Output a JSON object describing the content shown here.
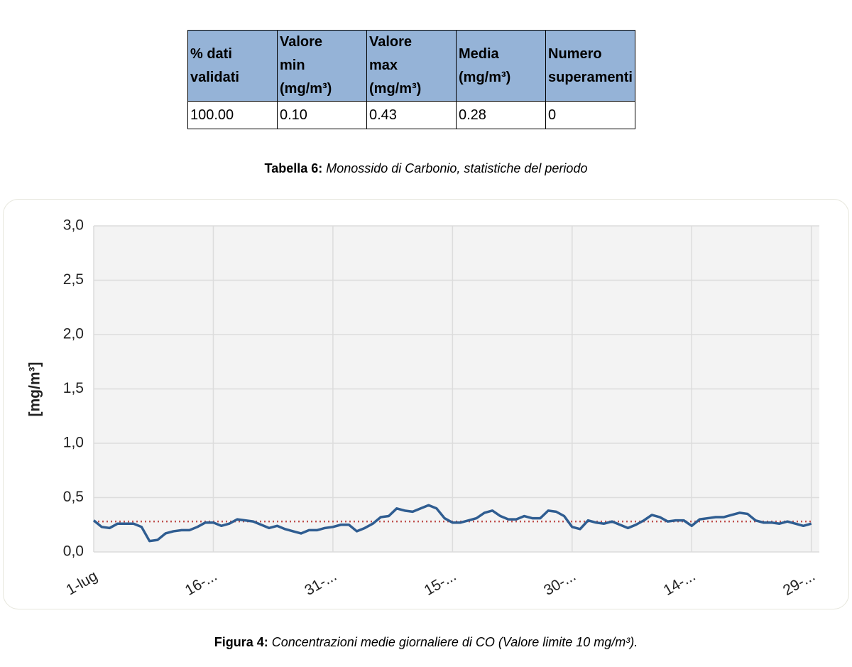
{
  "table": {
    "header": [
      [
        "% dati",
        "validati"
      ],
      [
        "Valore",
        "min",
        "(mg/m³)"
      ],
      [
        "Valore",
        "max",
        "(mg/m³)"
      ],
      [
        "Media",
        "(mg/m³)"
      ],
      [
        "Numero",
        "superamenti"
      ]
    ],
    "rows": [
      [
        "100.00",
        "0.10",
        "0.43",
        "0.28",
        "0"
      ]
    ]
  },
  "table_caption": {
    "label": "Tabella 6:",
    "text": "Monossido di Carbonio, statistiche del periodo"
  },
  "chart_data": {
    "type": "line",
    "y_label": "[mg/m³]",
    "categories": [
      "1-lug",
      null,
      null,
      null,
      null,
      null,
      null,
      null,
      null,
      null,
      null,
      null,
      null,
      null,
      null,
      "16-...",
      null,
      null,
      null,
      null,
      null,
      null,
      null,
      null,
      null,
      null,
      null,
      null,
      null,
      null,
      "31-...",
      null,
      null,
      null,
      null,
      null,
      null,
      null,
      null,
      null,
      null,
      null,
      null,
      null,
      null,
      "15-...",
      null,
      null,
      null,
      null,
      null,
      null,
      null,
      null,
      null,
      null,
      null,
      null,
      null,
      null,
      "30-...",
      null,
      null,
      null,
      null,
      null,
      null,
      null,
      null,
      null,
      null,
      null,
      null,
      null,
      null,
      "14-...",
      null,
      null,
      null,
      null,
      null,
      null,
      null,
      null,
      null,
      null,
      null,
      null,
      null,
      null,
      "29-..."
    ],
    "series": [
      {
        "name": "CO",
        "color": "#2f5d91",
        "values": [
          0.29,
          0.23,
          0.22,
          0.26,
          0.26,
          0.26,
          0.23,
          0.1,
          0.11,
          0.17,
          0.19,
          0.2,
          0.2,
          0.23,
          0.27,
          0.27,
          0.24,
          0.26,
          0.3,
          0.29,
          0.28,
          0.25,
          0.22,
          0.24,
          0.21,
          0.19,
          0.17,
          0.2,
          0.2,
          0.22,
          0.23,
          0.25,
          0.25,
          0.19,
          0.22,
          0.26,
          0.32,
          0.33,
          0.4,
          0.38,
          0.37,
          0.4,
          0.43,
          0.4,
          0.31,
          0.27,
          0.27,
          0.29,
          0.31,
          0.36,
          0.38,
          0.33,
          0.3,
          0.3,
          0.33,
          0.31,
          0.31,
          0.38,
          0.37,
          0.33,
          0.23,
          0.21,
          0.29,
          0.27,
          0.26,
          0.28,
          0.25,
          0.22,
          0.25,
          0.29,
          0.34,
          0.32,
          0.28,
          0.29,
          0.29,
          0.24,
          0.3,
          0.31,
          0.32,
          0.32,
          0.34,
          0.36,
          0.35,
          0.29,
          0.27,
          0.27,
          0.26,
          0.28,
          0.26,
          0.24,
          0.26
        ]
      }
    ],
    "mean_line": {
      "value": 0.28,
      "color": "#c0504d"
    },
    "ylim": [
      0,
      3
    ],
    "yticks": [
      {
        "value": 0,
        "label": "0,0"
      },
      {
        "value": 0.5,
        "label": "0,5"
      },
      {
        "value": 1,
        "label": "1,0"
      },
      {
        "value": 1.5,
        "label": "1,5"
      },
      {
        "value": 2,
        "label": "2,0"
      },
      {
        "value": 2.5,
        "label": "2,5"
      },
      {
        "value": 3,
        "label": "3,0"
      }
    ],
    "grid": true
  },
  "figure_caption": {
    "label": "Figura 4:",
    "text": "Concentrazioni medie giornaliere di CO (Valore limite 10 mg/m³)."
  }
}
